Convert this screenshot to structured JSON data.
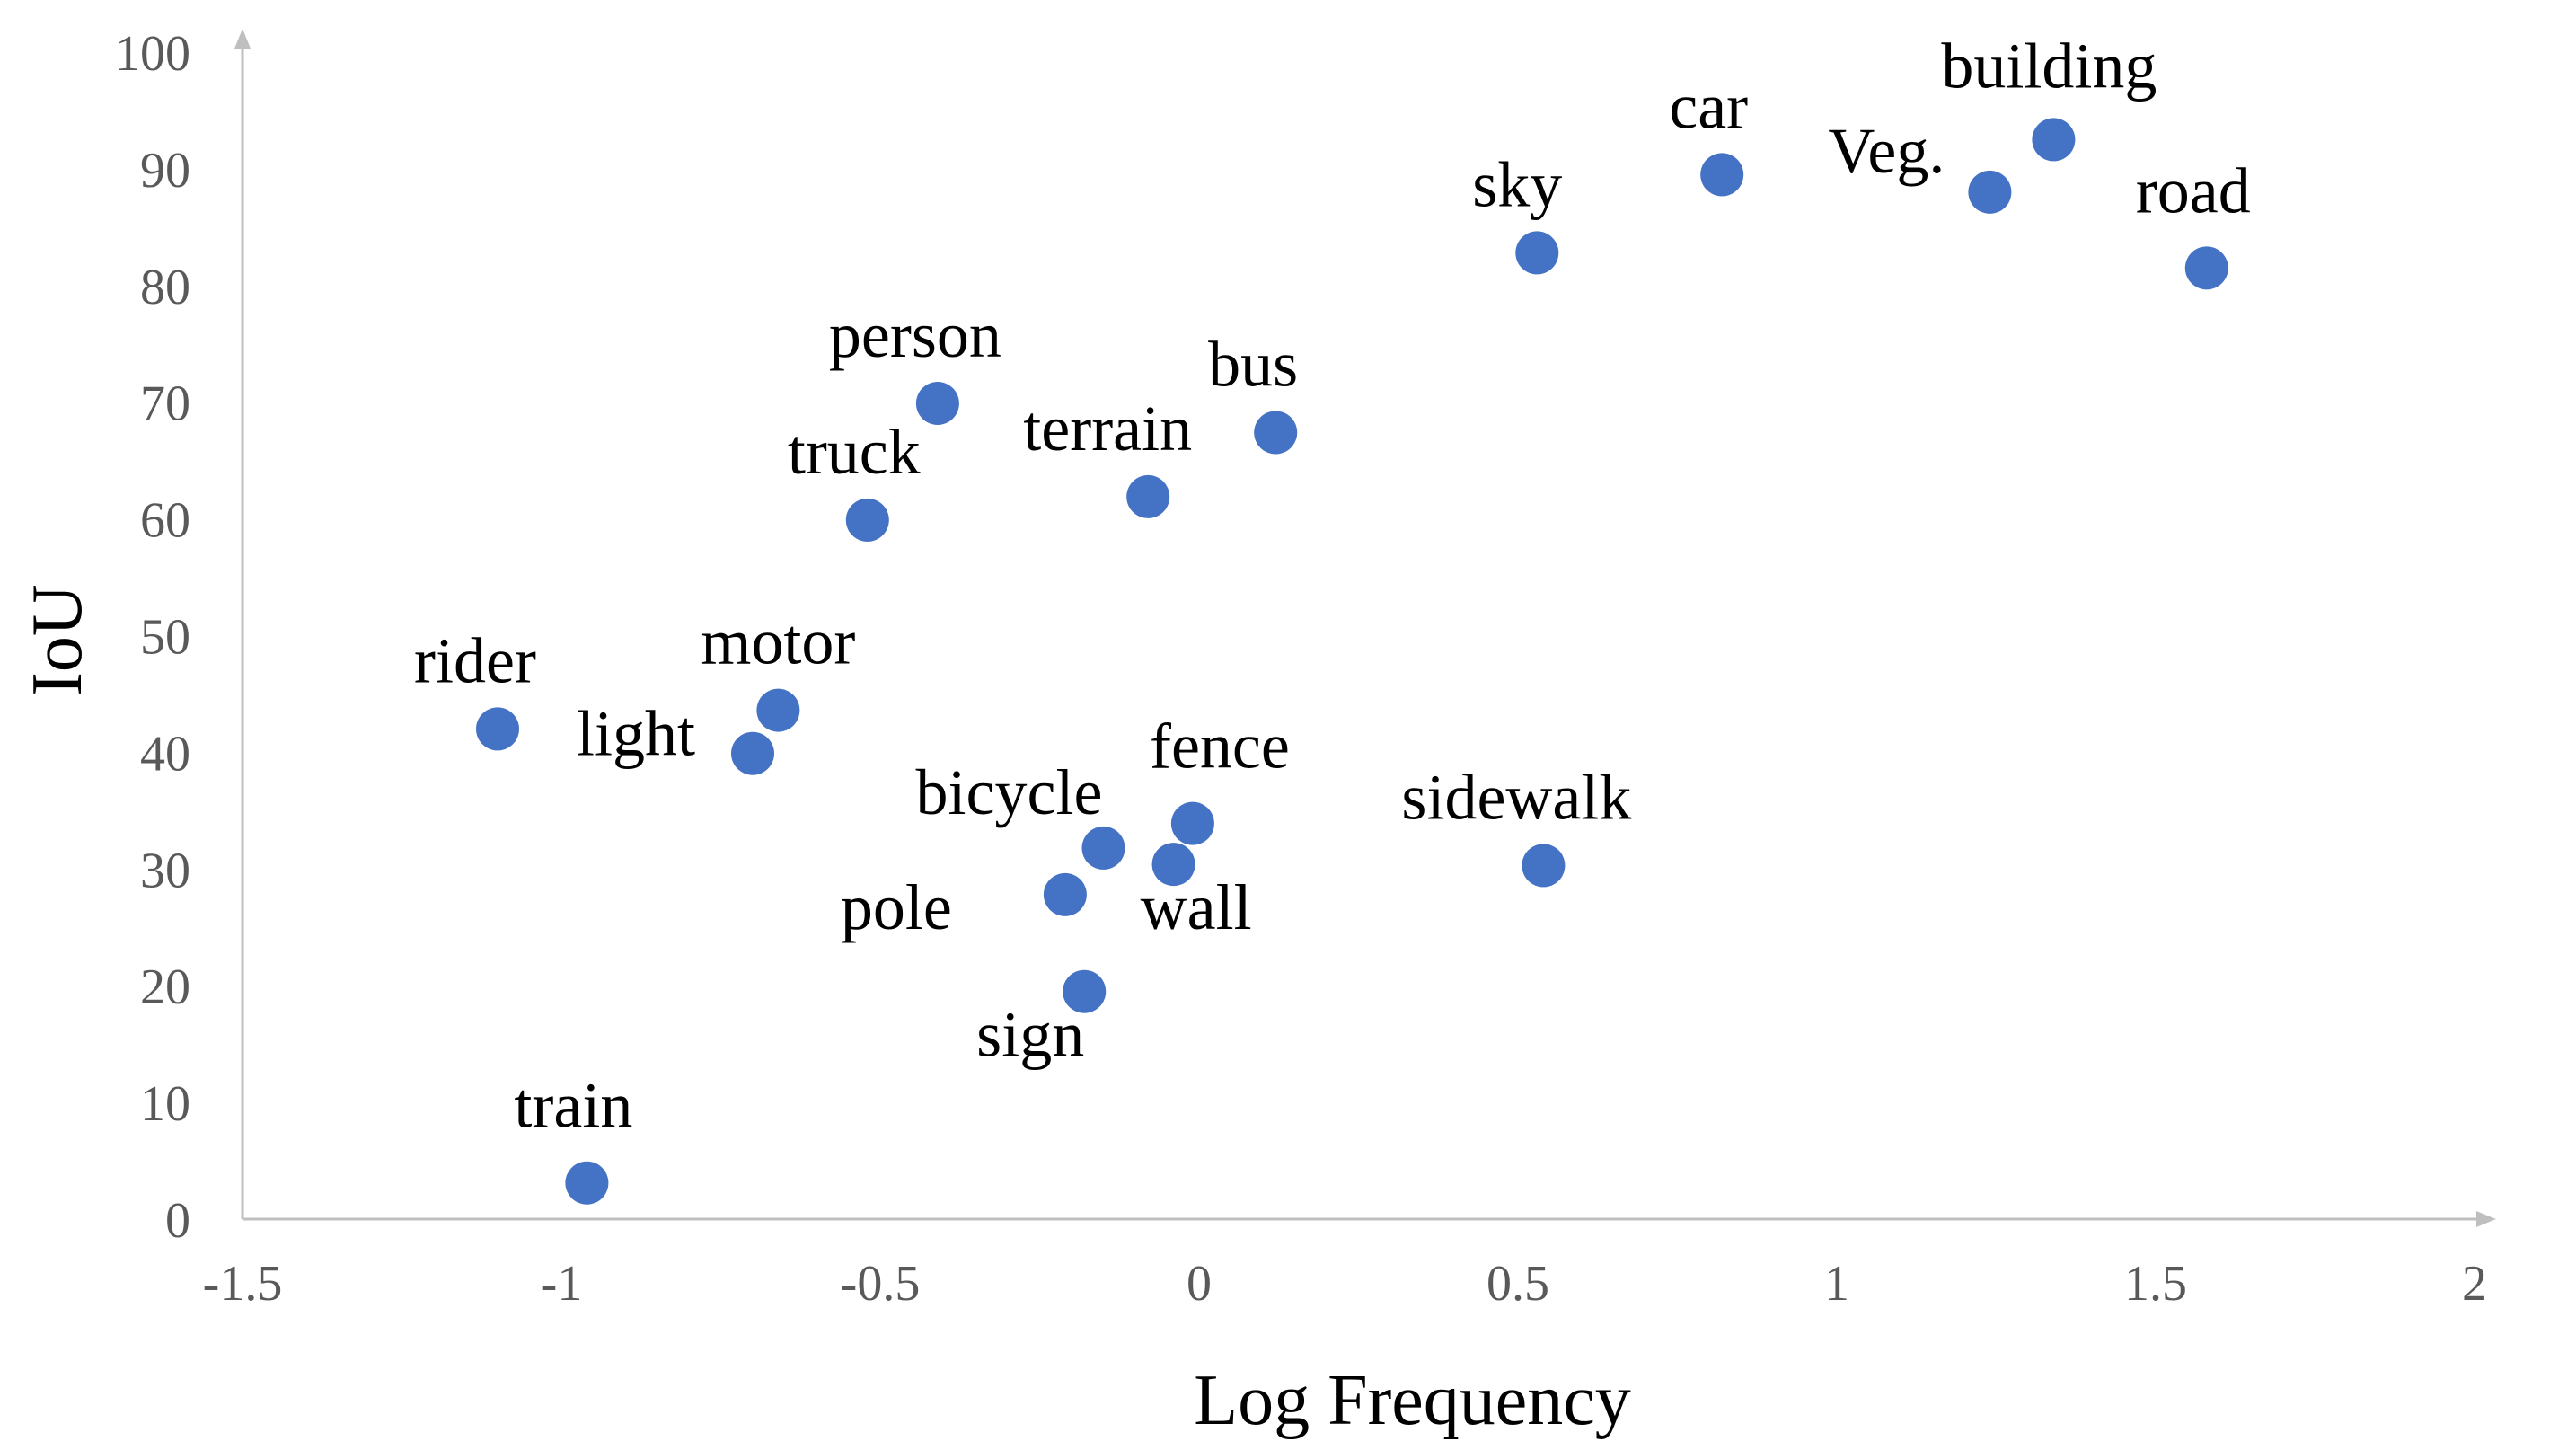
{
  "chart_data": {
    "type": "scatter",
    "title": "",
    "xlabel": "Log Frequency",
    "ylabel": "IoU",
    "xlim": [
      -1.5,
      2
    ],
    "ylim": [
      0,
      100
    ],
    "x_ticks": [
      -1.5,
      -1,
      -0.5,
      0,
      0.5,
      1,
      1.5,
      2
    ],
    "x_tick_labels": [
      "-1.5",
      "-1",
      "-0.5",
      "0",
      "0.5",
      "1",
      "1.5",
      "2"
    ],
    "y_ticks": [
      0,
      10,
      20,
      30,
      40,
      50,
      60,
      70,
      80,
      90,
      100
    ],
    "y_tick_labels": [
      "0",
      "10",
      "20",
      "30",
      "40",
      "50",
      "60",
      "70",
      "80",
      "90",
      "100"
    ],
    "grid": false,
    "legend": "none",
    "marker_color": "#4472C4",
    "points": [
      {
        "label": "road",
        "x": 1.58,
        "y": 81.5
      },
      {
        "label": "building",
        "x": 1.34,
        "y": 92.5
      },
      {
        "label": "Veg.",
        "x": 1.24,
        "y": 88.0
      },
      {
        "label": "car",
        "x": 0.82,
        "y": 89.5
      },
      {
        "label": "sky",
        "x": 0.53,
        "y": 82.8
      },
      {
        "label": "bus",
        "x": 0.12,
        "y": 67.4
      },
      {
        "label": "terrain",
        "x": -0.08,
        "y": 61.9
      },
      {
        "label": "person",
        "x": -0.41,
        "y": 69.9
      },
      {
        "label": "truck",
        "x": -0.52,
        "y": 59.9
      },
      {
        "label": "motor",
        "x": -0.66,
        "y": 43.6
      },
      {
        "label": "light",
        "x": -0.7,
        "y": 39.9
      },
      {
        "label": "rider",
        "x": -1.1,
        "y": 42.0
      },
      {
        "label": "fence",
        "x": -0.01,
        "y": 33.9
      },
      {
        "label": "sidewalk",
        "x": 0.54,
        "y": 30.3
      },
      {
        "label": "bicycle",
        "x": -0.15,
        "y": 31.8
      },
      {
        "label": "wall",
        "x": -0.04,
        "y": 30.4
      },
      {
        "label": "pole",
        "x": -0.21,
        "y": 27.8
      },
      {
        "label": "sign",
        "x": -0.18,
        "y": 19.5
      },
      {
        "label": "train",
        "x": -0.96,
        "y": 3.1
      }
    ]
  }
}
